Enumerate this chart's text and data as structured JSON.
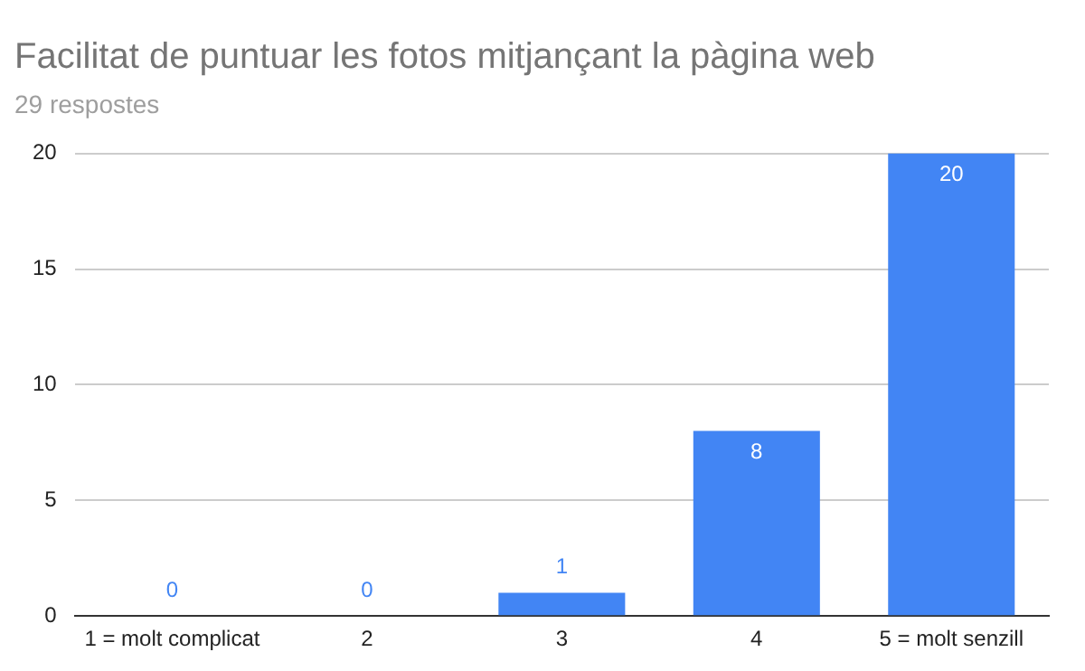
{
  "chart_data": {
    "type": "bar",
    "title": "Facilitat de puntuar les fotos mitjançant la pàgina web",
    "subtitle": "29 respostes",
    "categories": [
      "1 = molt complicat",
      "2",
      "3",
      "4",
      "5 = molt senzill"
    ],
    "values": [
      0,
      0,
      1,
      8,
      20
    ],
    "color": "#4285f4",
    "ylim": [
      0,
      20
    ],
    "yticks": [
      0,
      5,
      10,
      15,
      20
    ],
    "grid": "y",
    "data_labels": true
  }
}
